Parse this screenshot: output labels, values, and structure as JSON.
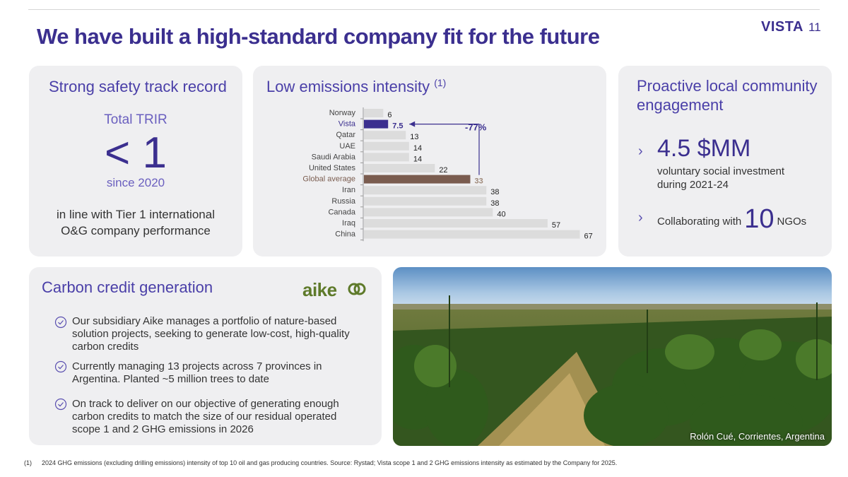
{
  "header": {
    "title": "We have built a high-standard company fit for the future",
    "brand": "VISTA",
    "page_number": "11"
  },
  "safety": {
    "title": "Strong safety track record",
    "metric_label": "Total TRIR",
    "metric_value": "< 1",
    "since": "since 2020",
    "description": "in line with Tier 1 international O&G company performance"
  },
  "emissions": {
    "title": "Low emissions intensity",
    "title_sup": "(1)",
    "reduction_label": "-77%",
    "colors": {
      "default": "#dcdcdc",
      "vista": "#3b2f8f",
      "global": "#7a5c4f"
    }
  },
  "chart_data": {
    "type": "bar",
    "orientation": "horizontal",
    "categories": [
      "Norway",
      "Vista",
      "Qatar",
      "UAE",
      "Saudi Arabia",
      "United States",
      "Global average",
      "Iran",
      "Russia",
      "Canada",
      "Iraq",
      "China"
    ],
    "values": [
      6,
      7.5,
      13,
      14,
      14,
      22,
      33,
      38,
      38,
      40,
      57,
      67
    ],
    "value_labels": [
      "6",
      "7.5",
      "13",
      "14",
      "14",
      "22",
      "33",
      "38",
      "38",
      "40",
      "57",
      "67"
    ],
    "highlight": {
      "Vista": "vista",
      "Global average": "global"
    },
    "annotation": "-77%",
    "xlim": [
      0,
      67
    ]
  },
  "community": {
    "title": "Proactive local community engagement",
    "investment_value": "4.5 $MM",
    "investment_desc": "voluntary social investment during 2021-24",
    "collab_prefix": "Collaborating with",
    "collab_number": "10",
    "collab_suffix": "NGOs"
  },
  "carbon": {
    "title": "Carbon credit generation",
    "logo_text": "aike",
    "bullets": [
      "Our subsidiary Aike manages a portfolio of nature-based solution projects, seeking to generate low-cost, high-quality carbon credits",
      "Currently managing 13 projects across 7 provinces in Argentina. Planted ~5 million trees to date",
      "On track to deliver on our objective of generating enough carbon credits to match the size of our residual operated scope 1 and 2 GHG emissions in 2026"
    ]
  },
  "photo": {
    "caption": "Rolón Cué, Corrientes, Argentina"
  },
  "footnote": {
    "mark": "(1)",
    "text": "2024 GHG emissions (excluding drilling emissions) intensity of top 10 oil and gas producing countries. Source: Rystad; Vista scope 1 and 2 GHG emissions intensity as estimated by the Company for 2025."
  }
}
